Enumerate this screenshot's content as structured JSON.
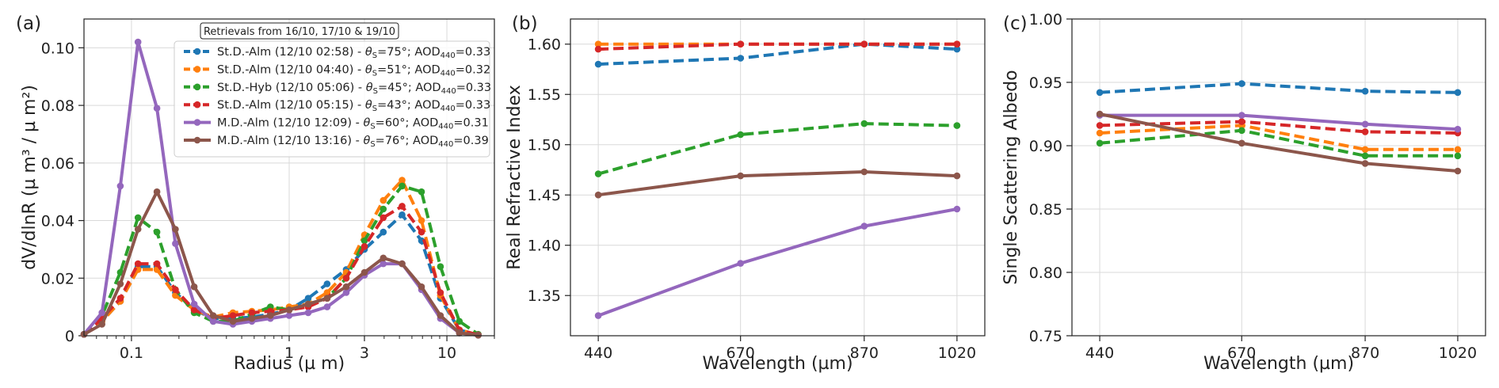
{
  "figure_title": "",
  "chart_data": [
    {
      "type": "line",
      "panel": "(a)",
      "xlabel": "Radius (µ m)",
      "ylabel": "dV/dlnR (µ m³ / µ m²)",
      "xscale": "log",
      "xlim": [
        0.05,
        20
      ],
      "ylim": [
        0,
        0.11
      ],
      "xticks": [
        {
          "v": 0.1,
          "label": "0.1"
        },
        {
          "v": 1,
          "label": "1"
        },
        {
          "v": 3,
          "label": "3"
        },
        {
          "v": 10,
          "label": "10"
        }
      ],
      "yticks": [
        {
          "v": 0,
          "label": "0"
        },
        {
          "v": 0.02,
          "label": "0.02"
        },
        {
          "v": 0.04,
          "label": "0.04"
        },
        {
          "v": 0.06,
          "label": "0.06"
        },
        {
          "v": 0.08,
          "label": "0.08"
        },
        {
          "v": 0.1,
          "label": "0.10"
        }
      ],
      "grid": true,
      "legend_title": "Retrievals from 16/10, 17/10 & 19/10",
      "legend_position": "top-right",
      "x": [
        0.05,
        0.065,
        0.085,
        0.11,
        0.145,
        0.19,
        0.25,
        0.33,
        0.44,
        0.58,
        0.76,
        1.0,
        1.32,
        1.74,
        2.3,
        3.0,
        3.95,
        5.2,
        6.9,
        9.1,
        12.0,
        15.8
      ],
      "series": [
        {
          "name": "St.D.-Alm (12/10 02:58) - θS=75°; AOD440=0.33",
          "legend": {
            "main": "St.D.-Alm (12/10 02:58) - ",
            "theta": "75°",
            "aod": "0.33"
          },
          "color": "#1f77b4",
          "dash": true,
          "values": [
            0.0005,
            0.005,
            0.012,
            0.024,
            0.024,
            0.015,
            0.009,
            0.006,
            0.006,
            0.0065,
            0.0075,
            0.009,
            0.013,
            0.018,
            0.023,
            0.03,
            0.036,
            0.042,
            0.033,
            0.013,
            0.002,
            0.0003
          ]
        },
        {
          "name": "St.D.-Alm (12/10 04:40) - θS=51°; AOD440=0.32",
          "legend": {
            "main": "St.D.-Alm (12/10 04:40) - ",
            "theta": "51°",
            "aod": "0.32"
          },
          "color": "#ff7f0e",
          "dash": true,
          "values": [
            0.0005,
            0.005,
            0.012,
            0.023,
            0.023,
            0.014,
            0.009,
            0.0065,
            0.008,
            0.0085,
            0.009,
            0.01,
            0.011,
            0.015,
            0.022,
            0.035,
            0.047,
            0.054,
            0.04,
            0.014,
            0.002,
            0.0003
          ]
        },
        {
          "name": "St.D.-Hyb (12/10 05:06) - θS=45°; AOD440=0.33",
          "legend": {
            "main": "St.D.-Hyb (12/10 05:06) - ",
            "theta": "45°",
            "aod": "0.33"
          },
          "color": "#2ca02c",
          "dash": true,
          "values": [
            0.0005,
            0.007,
            0.022,
            0.041,
            0.036,
            0.016,
            0.008,
            0.005,
            0.005,
            0.0075,
            0.01,
            0.009,
            0.011,
            0.013,
            0.02,
            0.033,
            0.044,
            0.052,
            0.05,
            0.024,
            0.005,
            0.0005
          ]
        },
        {
          "name": "St.D.-Alm (12/10 05:15) - θS=43°; AOD440=0.33",
          "legend": {
            "main": "St.D.-Alm (12/10 05:15) - ",
            "theta": "43°",
            "aod": "0.33"
          },
          "color": "#d62728",
          "dash": true,
          "values": [
            0.0005,
            0.006,
            0.013,
            0.025,
            0.025,
            0.016,
            0.009,
            0.006,
            0.007,
            0.008,
            0.0085,
            0.009,
            0.01,
            0.013,
            0.02,
            0.031,
            0.041,
            0.045,
            0.036,
            0.015,
            0.002,
            0.0003
          ]
        },
        {
          "name": "M.D.-Alm (12/10 12:09) - θS=60°; AOD440=0.31",
          "legend": {
            "main": "M.D.-Alm (12/10 12:09) - ",
            "theta": "60°",
            "aod": "0.31"
          },
          "color": "#9467bd",
          "dash": false,
          "values": [
            0.0005,
            0.008,
            0.052,
            0.102,
            0.079,
            0.032,
            0.011,
            0.005,
            0.004,
            0.005,
            0.006,
            0.007,
            0.008,
            0.01,
            0.015,
            0.021,
            0.025,
            0.025,
            0.016,
            0.006,
            0.001,
            0.0002
          ]
        },
        {
          "name": "M.D.-Alm (12/10 13:16) - θS=76°; AOD440=0.39",
          "legend": {
            "main": "M.D.-Alm (12/10 13:16) - ",
            "theta": "76°",
            "aod": "0.39"
          },
          "color": "#8c564b",
          "dash": false,
          "values": [
            0.0005,
            0.004,
            0.018,
            0.037,
            0.05,
            0.037,
            0.017,
            0.007,
            0.005,
            0.006,
            0.007,
            0.009,
            0.011,
            0.013,
            0.017,
            0.022,
            0.027,
            0.025,
            0.017,
            0.007,
            0.001,
            0.0002
          ]
        }
      ]
    },
    {
      "type": "line",
      "panel": "(b)",
      "xlabel": "Wavelength (µm)",
      "ylabel": "Real Refractive Index",
      "xlim": [
        395,
        1065
      ],
      "ylim": [
        1.31,
        1.625
      ],
      "xticks": [
        {
          "v": 440,
          "label": "440"
        },
        {
          "v": 670,
          "label": "670"
        },
        {
          "v": 870,
          "label": "870"
        },
        {
          "v": 1020,
          "label": "1020"
        }
      ],
      "yticks": [
        {
          "v": 1.35,
          "label": "1.35"
        },
        {
          "v": 1.4,
          "label": "1.40"
        },
        {
          "v": 1.45,
          "label": "1.45"
        },
        {
          "v": 1.5,
          "label": "1.50"
        },
        {
          "v": 1.55,
          "label": "1.55"
        },
        {
          "v": 1.6,
          "label": "1.60"
        }
      ],
      "grid": true,
      "x": [
        440,
        670,
        870,
        1020
      ],
      "series": [
        {
          "name": "St.D.-Alm (12/10 02:58)",
          "color": "#1f77b4",
          "dash": true,
          "values": [
            1.58,
            1.586,
            1.6,
            1.595
          ]
        },
        {
          "name": "St.D.-Alm (12/10 04:40)",
          "color": "#ff7f0e",
          "dash": true,
          "values": [
            1.6,
            1.6,
            1.6,
            1.6
          ]
        },
        {
          "name": "St.D.-Hyb (12/10 05:06)",
          "color": "#2ca02c",
          "dash": true,
          "values": [
            1.471,
            1.51,
            1.521,
            1.519
          ]
        },
        {
          "name": "St.D.-Alm (12/10 05:15)",
          "color": "#d62728",
          "dash": true,
          "values": [
            1.595,
            1.6,
            1.6,
            1.6
          ]
        },
        {
          "name": "M.D.-Alm (12/10 12:09)",
          "color": "#9467bd",
          "dash": false,
          "values": [
            1.33,
            1.382,
            1.419,
            1.436
          ]
        },
        {
          "name": "M.D.-Alm (12/10 13:16)",
          "color": "#8c564b",
          "dash": false,
          "values": [
            1.45,
            1.469,
            1.473,
            1.469
          ]
        }
      ]
    },
    {
      "type": "line",
      "panel": "(c)",
      "xlabel": "Wavelength (µm)",
      "ylabel": "Single Scattering Albedo",
      "xlim": [
        395,
        1065
      ],
      "ylim": [
        0.75,
        1.0
      ],
      "xticks": [
        {
          "v": 440,
          "label": "440"
        },
        {
          "v": 670,
          "label": "670"
        },
        {
          "v": 870,
          "label": "870"
        },
        {
          "v": 1020,
          "label": "1020"
        }
      ],
      "yticks": [
        {
          "v": 0.75,
          "label": "0.75"
        },
        {
          "v": 0.8,
          "label": "0.80"
        },
        {
          "v": 0.85,
          "label": "0.85"
        },
        {
          "v": 0.9,
          "label": "0.90"
        },
        {
          "v": 0.95,
          "label": "0.95"
        },
        {
          "v": 1.0,
          "label": "1.00"
        }
      ],
      "grid": true,
      "x": [
        440,
        670,
        870,
        1020
      ],
      "series": [
        {
          "name": "St.D.-Alm (12/10 02:58)",
          "color": "#1f77b4",
          "dash": true,
          "values": [
            0.942,
            0.949,
            0.943,
            0.942
          ]
        },
        {
          "name": "St.D.-Alm (12/10 04:40)",
          "color": "#ff7f0e",
          "dash": true,
          "values": [
            0.91,
            0.916,
            0.897,
            0.897
          ]
        },
        {
          "name": "St.D.-Hyb (12/10 05:06)",
          "color": "#2ca02c",
          "dash": true,
          "values": [
            0.902,
            0.912,
            0.892,
            0.892
          ]
        },
        {
          "name": "St.D.-Alm (12/10 05:15)",
          "color": "#d62728",
          "dash": true,
          "values": [
            0.916,
            0.919,
            0.911,
            0.91
          ]
        },
        {
          "name": "M.D.-Alm (12/10 12:09)",
          "color": "#9467bd",
          "dash": false,
          "values": [
            0.924,
            0.924,
            0.917,
            0.913
          ]
        },
        {
          "name": "M.D.-Alm (12/10 13:16)",
          "color": "#8c564b",
          "dash": false,
          "values": [
            0.925,
            0.902,
            0.886,
            0.88
          ]
        }
      ]
    }
  ]
}
